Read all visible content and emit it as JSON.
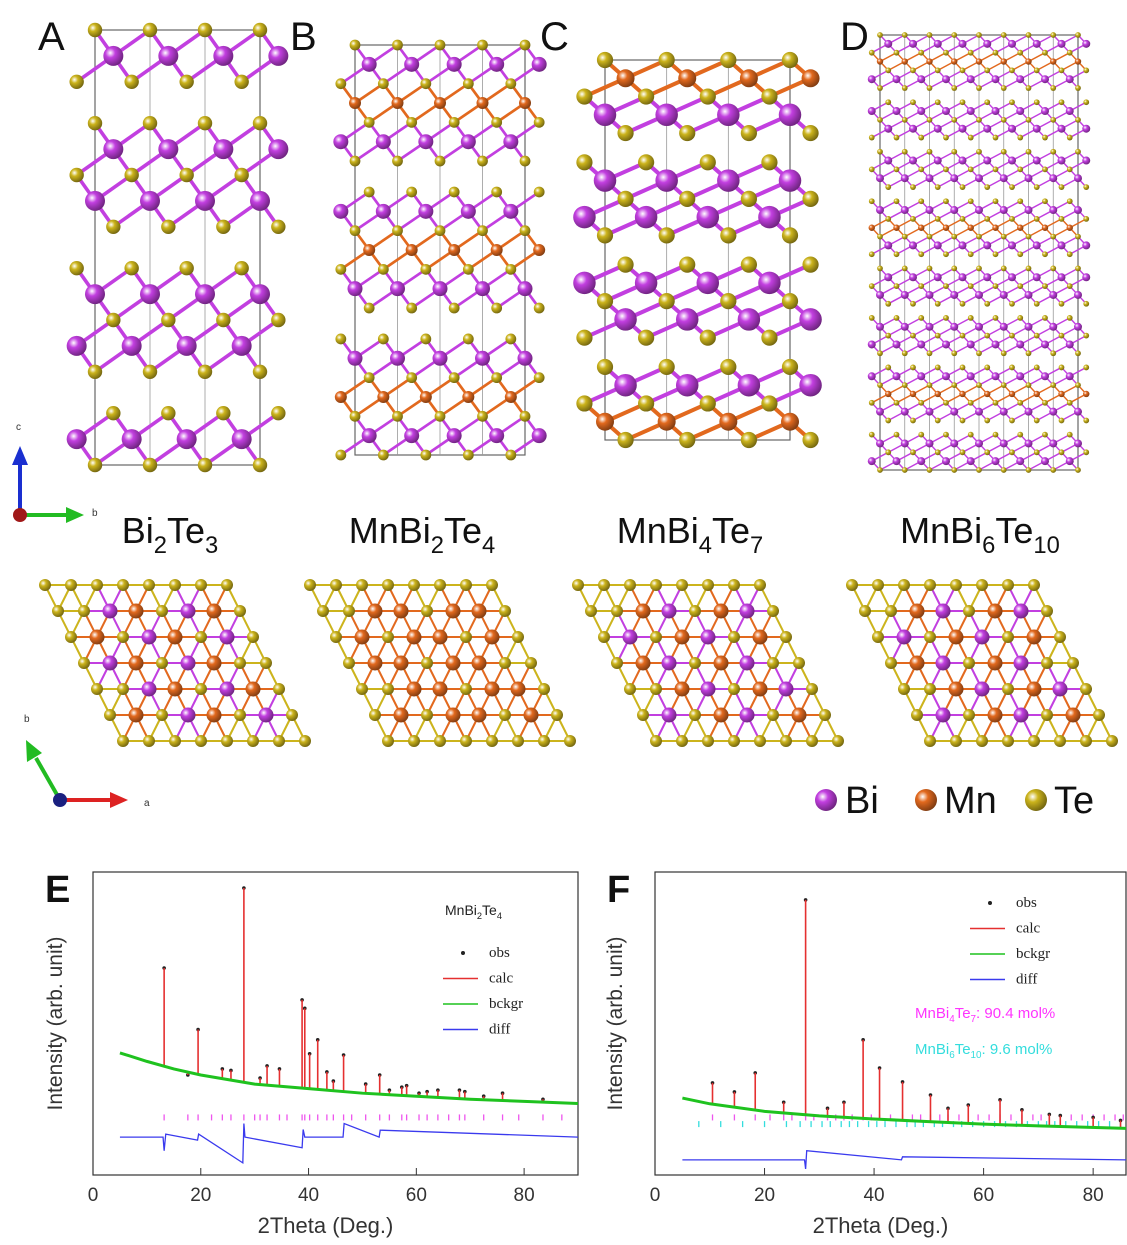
{
  "structures": {
    "panels": [
      {
        "label": "A",
        "formula": [
          [
            "Bi",
            "2"
          ],
          [
            "Te",
            "3"
          ]
        ]
      },
      {
        "label": "B",
        "formula": [
          [
            "Mn"
          ],
          [
            "Bi",
            "2"
          ],
          [
            "Te",
            "4"
          ]
        ]
      },
      {
        "label": "C",
        "formula": [
          [
            "Mn"
          ],
          [
            "Bi",
            "4"
          ],
          [
            "Te",
            "7"
          ]
        ]
      },
      {
        "label": "D",
        "formula": [
          [
            "Mn"
          ],
          [
            "Bi",
            "6"
          ],
          [
            "Te",
            "10"
          ]
        ]
      }
    ],
    "axes_top": [
      "c",
      "b"
    ],
    "axes_bottom": [
      "b",
      "a"
    ],
    "legend": [
      {
        "name": "Bi",
        "color": "#c23fe0"
      },
      {
        "name": "Mn",
        "color": "#e2691e"
      },
      {
        "name": "Te",
        "color": "#ccb41c"
      }
    ]
  },
  "chart_data": [
    {
      "type": "line",
      "label": "E",
      "title_formula": [
        [
          "Mn"
        ],
        [
          "Bi",
          "2"
        ],
        [
          "Te",
          "4"
        ]
      ],
      "x_label": "2Theta (Deg.)",
      "y_label": "Intensity (arb. unit)",
      "xlim": [
        0,
        90
      ],
      "xticks": [
        0,
        20,
        40,
        60,
        80
      ],
      "ylim": [
        0,
        100
      ],
      "series": [
        {
          "name": "obs",
          "color": "#222222",
          "x": [
            13.2,
            17.6,
            19.5,
            24.0,
            25.6,
            28.0,
            31.0,
            32.3,
            34.6,
            38.8,
            39.3,
            40.2,
            41.7,
            43.4,
            44.6,
            46.5,
            50.6,
            53.2,
            55.0,
            57.3,
            58.2,
            60.5,
            62.0,
            64.0,
            68.0,
            69.0,
            72.5,
            76.0,
            83.5
          ],
          "values": [
            68.3,
            33,
            48,
            35,
            34.5,
            94.7,
            32,
            36,
            35,
            57.8,
            55,
            40,
            44.6,
            34,
            31,
            39.6,
            30,
            33,
            28,
            29,
            29.5,
            27,
            27.5,
            28,
            28,
            27.5,
            26,
            27,
            25
          ]
        },
        {
          "name": "calc",
          "color": "#e53030",
          "x": [
            13.2,
            17.6,
            19.5,
            24.0,
            25.6,
            28.0,
            31.0,
            32.3,
            34.6,
            38.8,
            39.3,
            40.2,
            41.7,
            43.4,
            44.6,
            46.5,
            50.6,
            53.2,
            55.0,
            57.3,
            58.2,
            60.5,
            62.0,
            64.0,
            68.0,
            69.0,
            72.5,
            76.0,
            83.5
          ],
          "values": [
            68.3,
            33,
            48,
            35,
            34.5,
            94.7,
            32,
            36,
            35,
            57.8,
            55,
            40,
            44.6,
            34,
            31,
            39.6,
            30,
            33,
            28,
            29,
            29.5,
            27,
            27.5,
            28,
            28,
            27.5,
            26,
            27,
            25
          ]
        },
        {
          "name": "bckgr",
          "color": "#1fc21f",
          "x": [
            5,
            10,
            15,
            20,
            30,
            40,
            50,
            60,
            70,
            80,
            90
          ],
          "values": [
            40.3,
            37.5,
            35,
            33,
            30,
            28.5,
            27,
            26,
            25,
            24.3,
            23.6
          ]
        },
        {
          "name": "diff",
          "color": "#3a3aee",
          "x": [
            5,
            13,
            13.2,
            13.5,
            19.4,
            19.6,
            27.8,
            28,
            28.2,
            38.8,
            39,
            39.3,
            46.4,
            46.6,
            53.1,
            53.3,
            90
          ],
          "values": [
            12.5,
            12.5,
            8,
            13.5,
            11.5,
            13.5,
            4,
            17,
            12.5,
            9,
            15,
            12.5,
            12.5,
            17,
            12.5,
            14.8,
            12.5
          ]
        }
      ],
      "reflections": [
        {
          "color": "#ee55ee",
          "x": [
            13.2,
            17.6,
            19.5,
            22,
            24,
            25.6,
            28,
            30,
            31,
            32.3,
            34.6,
            36,
            38.8,
            39.3,
            40.2,
            41.7,
            43.4,
            44.6,
            46.5,
            48,
            50.6,
            53.2,
            55,
            57.3,
            58.2,
            60.5,
            62,
            64,
            66,
            68,
            69,
            72.5,
            76,
            79,
            83.5,
            87
          ]
        }
      ]
    },
    {
      "type": "line",
      "label": "F",
      "x_label": "2Theta (Deg.)",
      "y_label": "Intensity (arb. unit)",
      "xlim": [
        0,
        86
      ],
      "xticks": [
        0,
        20,
        40,
        60,
        80
      ],
      "ylim": [
        0,
        100
      ],
      "series": [
        {
          "name": "obs",
          "color": "#222222",
          "x": [
            10.5,
            14.5,
            18.3,
            23.5,
            27.5,
            31.5,
            34.5,
            38.0,
            41.0,
            45.2,
            50.3,
            53.5,
            57.2,
            63.0,
            67.0,
            72.0,
            74.0,
            80.0,
            85.0
          ],
          "values": [
            30.4,
            27.4,
            33.7,
            24,
            90.8,
            22,
            24,
            44.6,
            35.3,
            30.7,
            26.4,
            22,
            23.1,
            24.8,
            21.5,
            20,
            19.6,
            19,
            18
          ]
        },
        {
          "name": "calc",
          "color": "#e53030",
          "x": [
            10.5,
            14.5,
            18.3,
            23.5,
            27.5,
            31.5,
            34.5,
            38.0,
            41.0,
            45.2,
            50.3,
            53.5,
            57.2,
            63.0,
            67.0,
            72.0,
            74.0,
            80.0,
            85.0
          ],
          "values": [
            30.4,
            27.4,
            33.7,
            24,
            90.8,
            22,
            24,
            44.6,
            35.3,
            30.7,
            26.4,
            22,
            23.1,
            24.8,
            21.5,
            20,
            19.6,
            19,
            18
          ]
        },
        {
          "name": "bckgr",
          "color": "#1fc21f",
          "x": [
            5,
            10,
            20,
            30,
            40,
            50,
            60,
            70,
            86
          ],
          "values": [
            25.4,
            23.5,
            21,
            19.5,
            18.5,
            17.6,
            16.8,
            16.2,
            15.4
          ]
        },
        {
          "name": "diff",
          "color": "#3a3aee",
          "x": [
            5,
            27.3,
            27.5,
            27.7,
            45,
            45.2,
            86
          ],
          "values": [
            5,
            5,
            2,
            8,
            5,
            6,
            5
          ]
        }
      ],
      "reflections": [
        {
          "color": "#ee55ee",
          "x": [
            10.5,
            14.5,
            18.3,
            21,
            23.5,
            25,
            27.5,
            29,
            31.5,
            33,
            34.5,
            36,
            38,
            39.5,
            41,
            43,
            45.2,
            47,
            48.5,
            50.3,
            52,
            53.5,
            55.5,
            57.2,
            59,
            61,
            63,
            65,
            67,
            69,
            70.5,
            72,
            74,
            76,
            78,
            80,
            82,
            84,
            85.5
          ]
        },
        {
          "color": "#33dddd",
          "x": [
            8,
            12,
            16,
            20,
            24,
            26.5,
            28.5,
            30.5,
            32,
            34,
            35.5,
            37,
            39,
            40.5,
            42,
            44,
            46,
            47.5,
            49,
            51,
            52.5,
            54.5,
            56,
            58,
            60,
            62,
            64,
            66,
            68,
            70,
            71.5,
            73,
            75,
            77,
            79,
            81,
            83,
            85
          ]
        }
      ],
      "annotations": [
        {
          "formula": [
            [
              "Mn"
            ],
            [
              "Bi",
              "4"
            ],
            [
              "Te",
              "7"
            ]
          ],
          "text": ": 90.4 mol%",
          "color": "#ff33ff"
        },
        {
          "formula": [
            [
              "Mn"
            ],
            [
              "Bi",
              "6"
            ],
            [
              "Te",
              "10"
            ]
          ],
          "text": ": 9.6 mol%",
          "color": "#33dddd"
        }
      ]
    }
  ]
}
